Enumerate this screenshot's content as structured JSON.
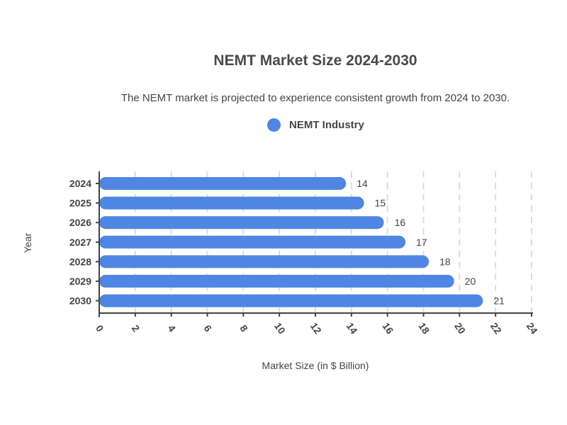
{
  "chart_data": {
    "type": "bar",
    "orientation": "horizontal",
    "title": "NEMT Market Size 2024-2030",
    "subtitle": "The NEMT market is projected to experience consistent growth from 2024 to 2030.",
    "xlabel": "Market Size (in $ Billion)",
    "ylabel": "Year",
    "categories": [
      "2024",
      "2025",
      "2026",
      "2027",
      "2028",
      "2029",
      "2030"
    ],
    "series": [
      {
        "name": "NEMT Industry",
        "color": "#4f86e3",
        "values": [
          13.7,
          14.7,
          15.8,
          17.0,
          18.3,
          19.7,
          21.3
        ],
        "labels": [
          "14",
          "15",
          "16",
          "17",
          "18",
          "20",
          "21"
        ]
      }
    ],
    "xlim": [
      0,
      24
    ],
    "xticks": [
      "0",
      "2",
      "4",
      "6",
      "8",
      "10",
      "12",
      "14",
      "16",
      "18",
      "20",
      "22",
      "24"
    ],
    "grid": "vertical-dashed",
    "legend_position": "top-center"
  }
}
